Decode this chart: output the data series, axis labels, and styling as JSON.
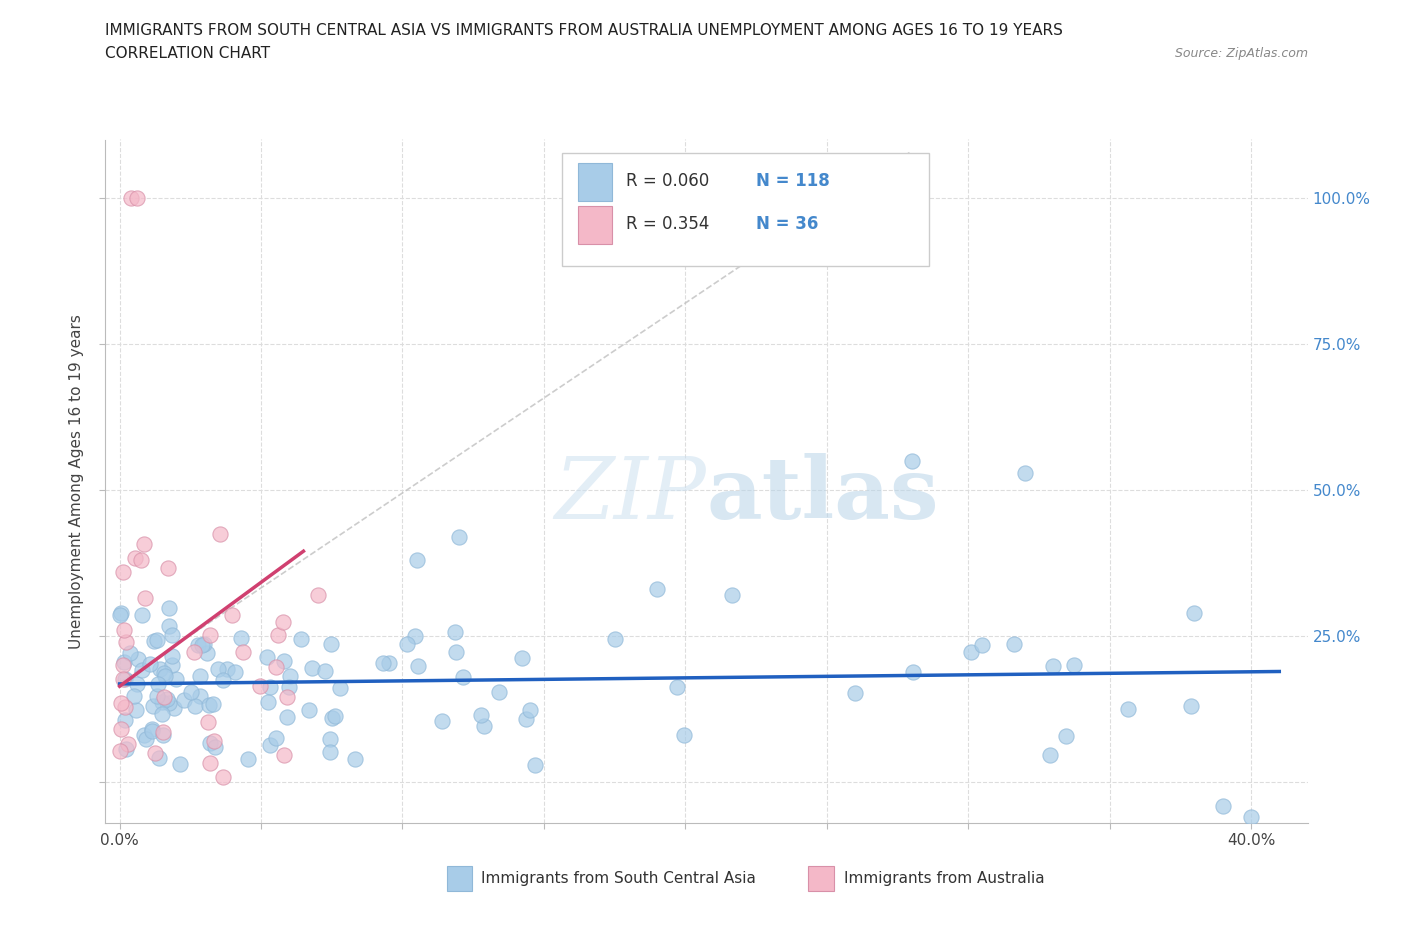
{
  "title_line1": "IMMIGRANTS FROM SOUTH CENTRAL ASIA VS IMMIGRANTS FROM AUSTRALIA UNEMPLOYMENT AMONG AGES 16 TO 19 YEARS",
  "title_line2": "CORRELATION CHART",
  "source_text": "Source: ZipAtlas.com",
  "ylabel": "Unemployment Among Ages 16 to 19 years",
  "series1_label": "Immigrants from South Central Asia",
  "series2_label": "Immigrants from Australia",
  "series1_R": 0.06,
  "series1_N": 118,
  "series2_R": 0.354,
  "series2_N": 36,
  "series1_color": "#a8cce8",
  "series2_color": "#f4b8c8",
  "trend1_color": "#2060c0",
  "trend2_color": "#d04070",
  "refline_color": "#cccccc",
  "watermark_color": "#ddeeff",
  "grid_color": "#dddddd",
  "background_color": "#ffffff",
  "xlim": [
    -0.005,
    0.42
  ],
  "ylim": [
    -0.07,
    1.1
  ],
  "x_tick_positions": [
    0.0,
    0.05,
    0.1,
    0.15,
    0.2,
    0.25,
    0.3,
    0.35,
    0.4
  ],
  "y_tick_positions": [
    0.0,
    0.25,
    0.5,
    0.75,
    1.0
  ]
}
